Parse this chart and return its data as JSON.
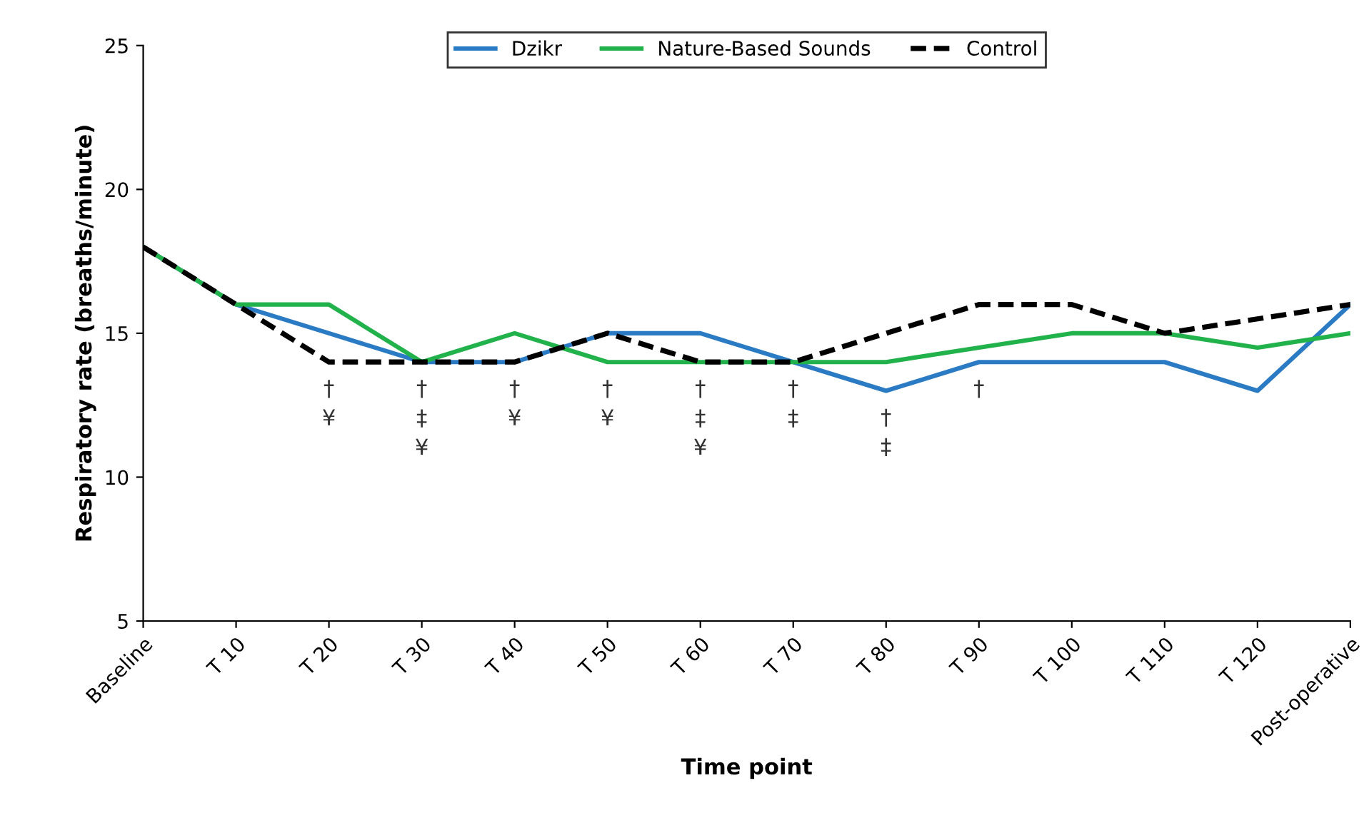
{
  "chart_data": {
    "type": "line",
    "xlabel": "Time point",
    "ylabel": "Respiratory rate (breaths/minute)",
    "categories": [
      "Baseline",
      "T 10",
      "T 20",
      "T 30",
      "T 40",
      "T 50",
      "T 60",
      "T 70",
      "T 80",
      "T 90",
      "T 100",
      "T 110",
      "T 120",
      "Post-operative"
    ],
    "series": [
      {
        "name": "Dzikr",
        "color": "#2a7ac4",
        "line_style": "solid",
        "values": [
          18,
          16,
          15,
          14,
          14,
          15,
          15,
          14,
          13,
          14,
          14,
          14,
          13,
          16
        ]
      },
      {
        "name": "Nature-Based Sounds",
        "color": "#21b24b",
        "line_style": "solid",
        "values": [
          18,
          16,
          16,
          14,
          15,
          14,
          14,
          14,
          14,
          14.5,
          15,
          15,
          14.5,
          15
        ]
      },
      {
        "name": "Control",
        "color": "#000000",
        "line_style": "dashed",
        "values": [
          18,
          16,
          14,
          14,
          14,
          15,
          14,
          14,
          15,
          16,
          16,
          15,
          15.5,
          16
        ]
      }
    ],
    "ylim": [
      5,
      25
    ],
    "yticks": [
      5,
      10,
      15,
      20,
      25
    ],
    "grid": false,
    "legend": "top",
    "marker": "none",
    "annotations": [
      "†\n¥",
      "†\n‡\n¥",
      "†\n¥",
      "†\n¥",
      "†\n‡\n¥",
      "†\n‡",
      "†\n‡",
      "†"
    ]
  }
}
